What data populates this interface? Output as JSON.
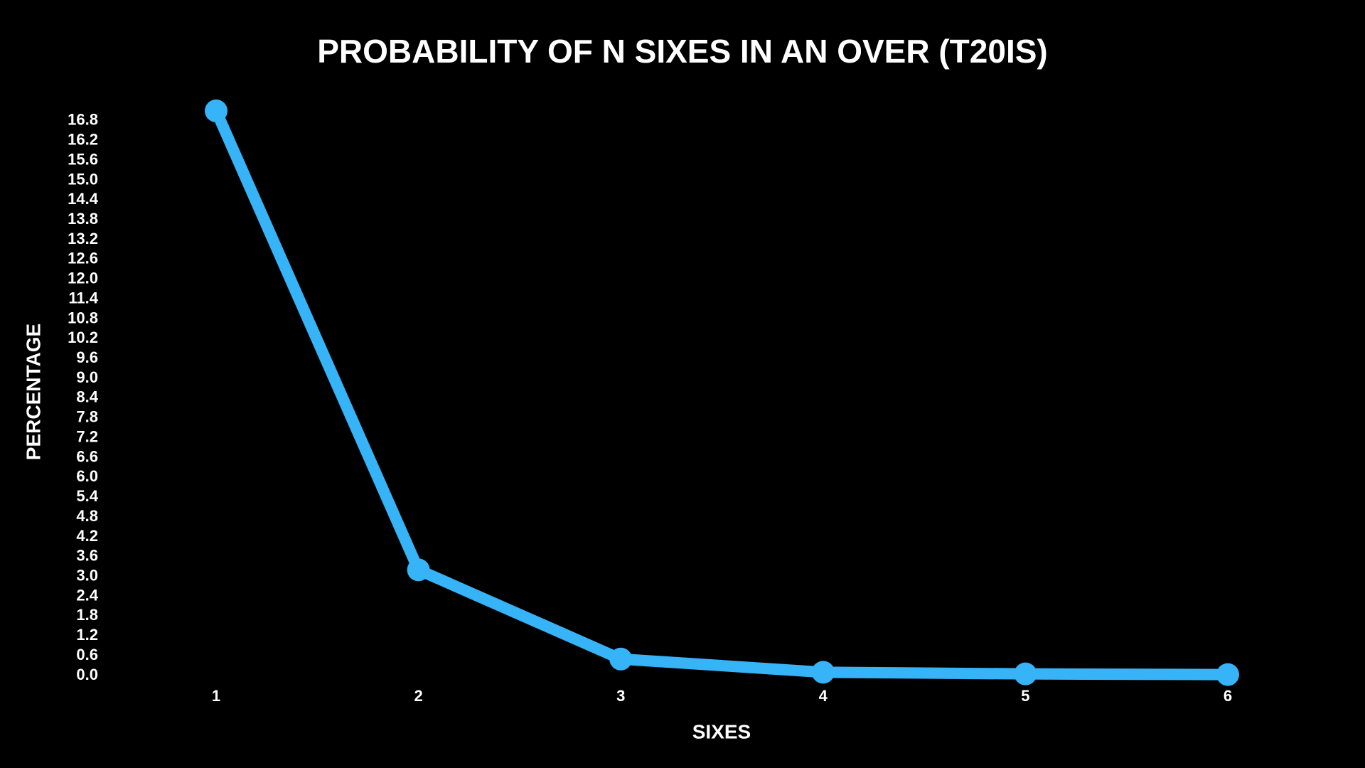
{
  "chart_data": {
    "type": "line",
    "title": "PROBABILITY OF N SIXES IN AN OVER (T20IS)",
    "x_label": "SIXES",
    "y_label": "PERCENTAGE",
    "x": [
      1,
      2,
      3,
      4,
      5,
      6
    ],
    "xlim": [
      1,
      6
    ],
    "xticks": [
      1,
      2,
      3,
      4,
      5,
      6
    ],
    "ylim": [
      0,
      17.4
    ],
    "yticks": [
      {
        "value": 0,
        "label": "0.0"
      },
      0.6,
      1.2,
      1.8,
      2.4,
      {
        "value": 3,
        "label": "3.0"
      },
      3.6,
      4.2,
      4.8,
      5.4,
      {
        "value": 6,
        "label": "6.0"
      },
      6.6,
      7.2,
      7.8,
      8.4,
      {
        "value": 9,
        "label": "9.0"
      },
      9.6,
      10.2,
      10.8,
      11.4,
      {
        "value": 12,
        "label": "12.0"
      },
      12.6,
      13.2,
      13.8,
      14.4,
      {
        "value": 15,
        "label": "15.0"
      },
      15.6,
      16.2,
      16.8
    ],
    "grid": false,
    "series": [
      {
        "color": "#36b4f7",
        "values": [
          17.1,
          3.2,
          0.5,
          0.1,
          0.05,
          0.03
        ]
      }
    ]
  }
}
